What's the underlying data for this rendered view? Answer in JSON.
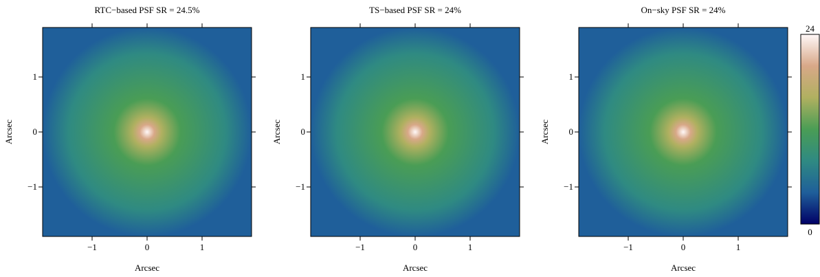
{
  "chart_data": [
    {
      "type": "image",
      "title": "RTC−based PSF SR = 24.5%",
      "xlabel": "Arcsec",
      "ylabel": "Arcsec",
      "xlim": [
        -1.9,
        1.9
      ],
      "ylim": [
        -1.9,
        1.9
      ],
      "xticks": [
        {
          "value": -1,
          "label": "−1"
        },
        0,
        1
      ],
      "yticks": [
        {
          "value": -1,
          "label": "−1"
        },
        0,
        1
      ]
    },
    {
      "type": "image",
      "title": "TS−based PSF SR = 24%",
      "xlabel": "Arcsec",
      "ylabel": "Arcsec",
      "xlim": [
        -1.9,
        1.9
      ],
      "ylim": [
        -1.9,
        1.9
      ],
      "xticks": [
        {
          "value": -1,
          "label": "−1"
        },
        0,
        1
      ],
      "yticks": [
        {
          "value": -1,
          "label": "−1"
        },
        0,
        1
      ]
    },
    {
      "type": "image",
      "title": "On−sky PSF SR = 24%",
      "xlabel": "Arcsec",
      "ylabel": "Arcsec",
      "xlim": [
        -1.9,
        1.9
      ],
      "ylim": [
        -1.9,
        1.9
      ],
      "xticks": [
        {
          "value": -1,
          "label": "−1"
        },
        0,
        1
      ],
      "yticks": [
        {
          "value": -1,
          "label": "−1"
        },
        0,
        1
      ],
      "clim": [
        0,
        24
      ],
      "cticks": [
        0,
        24
      ],
      "colormap": [
        "#000066",
        "#1f5f9a",
        "#2f8a82",
        "#4a9d55",
        "#b0b060",
        "#d8a888",
        "#fff8f8"
      ]
    }
  ]
}
